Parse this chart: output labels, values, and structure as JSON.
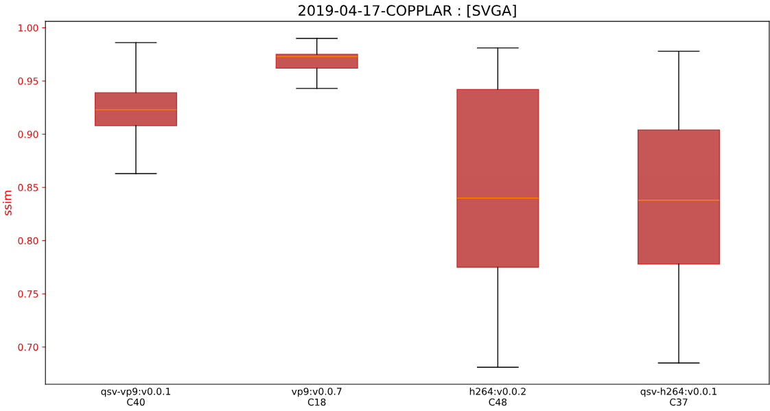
{
  "chart_data": {
    "type": "box",
    "title": "2019-04-17-COPPLAR : [SVGA]",
    "ylabel": "ssim",
    "categories": [
      "qsv-vp9:v0.0.1\nC40",
      "vp9:v0.0.7\nC18",
      "h264:v0.0.2\nC48",
      "qsv-h264:v0.0.1\nC37"
    ],
    "series": [
      {
        "color": "#c44e4e",
        "boxes": [
          {
            "low": 0.863,
            "q1": 0.908,
            "median": 0.923,
            "q3": 0.939,
            "high": 0.986
          },
          {
            "low": 0.943,
            "q1": 0.962,
            "median": 0.973,
            "q3": 0.975,
            "high": 0.99
          },
          {
            "low": 0.681,
            "q1": 0.775,
            "median": 0.84,
            "q3": 0.942,
            "high": 0.981
          },
          {
            "low": 0.685,
            "q1": 0.778,
            "median": 0.838,
            "q3": 0.904,
            "high": 0.978
          }
        ]
      }
    ],
    "ylim": [
      0.665,
      1.006
    ],
    "yticks": [
      {
        "value": 0.7,
        "label": "0.70"
      },
      {
        "value": 0.75,
        "label": "0.75"
      },
      {
        "value": 0.8,
        "label": "0.80"
      },
      {
        "value": 0.85,
        "label": "0.85"
      },
      {
        "value": 0.9,
        "label": "0.90"
      },
      {
        "value": 0.95,
        "label": "0.95"
      },
      {
        "value": 1.0,
        "label": "1.00"
      }
    ],
    "grid": false,
    "legend": false
  }
}
